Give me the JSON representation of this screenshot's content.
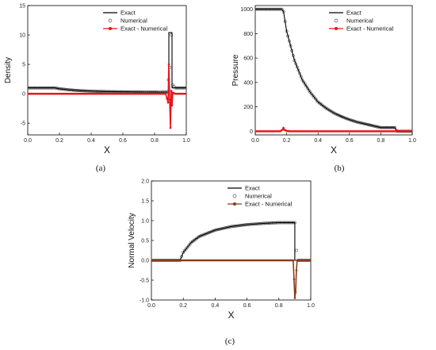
{
  "chart_data": [
    {
      "id": "a",
      "type": "line",
      "caption": "(a)",
      "xlabel": "X",
      "ylabel": "Density",
      "xlim": [
        0.0,
        1.0
      ],
      "ylim": [
        -7,
        15
      ],
      "xticks": [
        0.0,
        0.2,
        0.4,
        0.6,
        0.8,
        1.0
      ],
      "xtick_labels": [
        "0.0",
        "0.2",
        "0.4",
        "0.6",
        "0.8",
        "1.0"
      ],
      "yticks": [
        -5,
        0,
        5,
        10,
        15
      ],
      "ytick_labels": [
        "-5",
        "0",
        "5",
        "10",
        "15"
      ],
      "legend_position": "top-right",
      "series": [
        {
          "name": "Exact",
          "style": "line",
          "color": "#000000",
          "x": [
            0,
            0.17,
            0.2,
            0.25,
            0.3,
            0.35,
            0.4,
            0.45,
            0.5,
            0.55,
            0.6,
            0.65,
            0.7,
            0.75,
            0.8,
            0.85,
            0.89,
            0.89,
            0.91,
            0.91,
            1.0
          ],
          "y": [
            1.0,
            1.0,
            0.85,
            0.7,
            0.58,
            0.5,
            0.44,
            0.4,
            0.37,
            0.35,
            0.33,
            0.31,
            0.3,
            0.29,
            0.28,
            0.27,
            0.27,
            10.4,
            10.4,
            1.0,
            1.0
          ]
        },
        {
          "name": "Numerical",
          "style": "open-circles",
          "color": "#555555",
          "x": [
            0,
            0.17,
            0.2,
            0.25,
            0.3,
            0.35,
            0.4,
            0.45,
            0.5,
            0.55,
            0.6,
            0.65,
            0.7,
            0.75,
            0.8,
            0.85,
            0.88,
            0.895,
            0.905,
            0.915,
            0.93,
            1.0
          ],
          "y": [
            1.0,
            1.0,
            0.85,
            0.7,
            0.58,
            0.5,
            0.44,
            0.4,
            0.37,
            0.35,
            0.33,
            0.31,
            0.3,
            0.29,
            0.28,
            0.27,
            0.3,
            4.5,
            10.0,
            1.5,
            1.0,
            1.0
          ]
        },
        {
          "name": "Exact - Numerical",
          "style": "line-markers",
          "color": "#e8141b",
          "x": [
            0,
            0.2,
            0.4,
            0.6,
            0.8,
            0.87,
            0.885,
            0.89,
            0.895,
            0.9,
            0.905,
            0.91,
            0.915,
            0.93,
            1.0
          ],
          "y": [
            0,
            0,
            0,
            0,
            0,
            0,
            -1.5,
            5.0,
            -1.0,
            -5.8,
            0.5,
            -2.0,
            0.2,
            0,
            0
          ]
        }
      ]
    },
    {
      "id": "b",
      "type": "line",
      "caption": "(b)",
      "xlabel": "X",
      "ylabel": "Pressure",
      "xlim": [
        0.0,
        1.0
      ],
      "ylim": [
        -30,
        1030
      ],
      "xticks": [
        0.0,
        0.2,
        0.4,
        0.6,
        0.8,
        1.0
      ],
      "xtick_labels": [
        "0.0",
        "0.2",
        "0.4",
        "0.6",
        "0.8",
        "1.0"
      ],
      "yticks": [
        0,
        200,
        400,
        600,
        800,
        1000
      ],
      "ytick_labels": [
        "0",
        "200",
        "400",
        "600",
        "800",
        "1000"
      ],
      "legend_position": "top-right",
      "series": [
        {
          "name": "Exact",
          "style": "line",
          "color": "#000000",
          "x": [
            0,
            0.17,
            0.18,
            0.2,
            0.25,
            0.3,
            0.35,
            0.4,
            0.45,
            0.5,
            0.55,
            0.6,
            0.65,
            0.7,
            0.75,
            0.8,
            0.89,
            0.9,
            1.0
          ],
          "y": [
            1000,
            1000,
            980,
            820,
            580,
            420,
            320,
            240,
            190,
            150,
            120,
            95,
            75,
            60,
            45,
            30,
            30,
            0,
            0
          ]
        },
        {
          "name": "Numerical",
          "style": "open-circles",
          "color": "#555555",
          "x": [
            0,
            0.17,
            0.18,
            0.2,
            0.25,
            0.3,
            0.35,
            0.4,
            0.45,
            0.5,
            0.55,
            0.6,
            0.65,
            0.7,
            0.75,
            0.8,
            0.89,
            0.9,
            1.0
          ],
          "y": [
            1000,
            1000,
            980,
            820,
            580,
            420,
            320,
            240,
            190,
            150,
            120,
            95,
            75,
            60,
            45,
            30,
            30,
            0,
            0
          ]
        },
        {
          "name": "Exact - Numerical",
          "style": "line-markers",
          "color": "#e8141b",
          "x": [
            0,
            0.16,
            0.175,
            0.18,
            0.185,
            0.2,
            0.22,
            0.3,
            0.5,
            0.7,
            0.89,
            0.9,
            0.91,
            1.0
          ],
          "y": [
            0,
            0,
            15,
            28,
            12,
            3,
            0,
            0,
            0,
            0,
            0,
            10,
            0,
            0
          ]
        }
      ]
    },
    {
      "id": "c",
      "type": "line",
      "caption": "(c)",
      "xlabel": "X",
      "ylabel": "Normal Velocity",
      "xlim": [
        0.0,
        1.0
      ],
      "ylim": [
        -1.0,
        2.0
      ],
      "xticks": [
        0.0,
        0.2,
        0.4,
        0.6,
        0.8,
        1.0
      ],
      "xtick_labels": [
        "0.0",
        "0.2",
        "0.4",
        "0.6",
        "0.8",
        "1.0"
      ],
      "yticks": [
        -1.0,
        -0.5,
        0.0,
        0.5,
        1.0,
        1.5,
        2.0
      ],
      "ytick_labels": [
        "-1.0",
        "-0.5",
        "0.0",
        "0.5",
        "1.0",
        "1.5",
        "2.0"
      ],
      "legend_position": "top-right",
      "series": [
        {
          "name": "Exact",
          "style": "line",
          "color": "#000000",
          "x": [
            0,
            0.18,
            0.2,
            0.25,
            0.3,
            0.4,
            0.5,
            0.6,
            0.7,
            0.8,
            0.9,
            0.9,
            1.0
          ],
          "y": [
            0,
            0,
            0.2,
            0.45,
            0.6,
            0.76,
            0.85,
            0.9,
            0.93,
            0.95,
            0.95,
            0,
            0
          ]
        },
        {
          "name": "Numerical",
          "style": "open-circles",
          "color": "#555555",
          "x": [
            0,
            0.18,
            0.2,
            0.25,
            0.3,
            0.4,
            0.5,
            0.6,
            0.7,
            0.8,
            0.9,
            0.91,
            0.92,
            1.0
          ],
          "y": [
            0,
            0,
            0.2,
            0.45,
            0.6,
            0.76,
            0.85,
            0.9,
            0.93,
            0.95,
            0.95,
            0.25,
            0,
            0
          ]
        },
        {
          "name": "Exact - Numerical",
          "style": "line-markers",
          "color": "#8b3a1a",
          "x": [
            0,
            0.2,
            0.4,
            0.6,
            0.8,
            0.89,
            0.9,
            0.905,
            0.91,
            0.915,
            0.93,
            1.0
          ],
          "y": [
            0,
            0,
            0,
            0,
            0,
            0,
            -0.95,
            -0.8,
            -0.25,
            0,
            0,
            0
          ]
        }
      ]
    }
  ]
}
